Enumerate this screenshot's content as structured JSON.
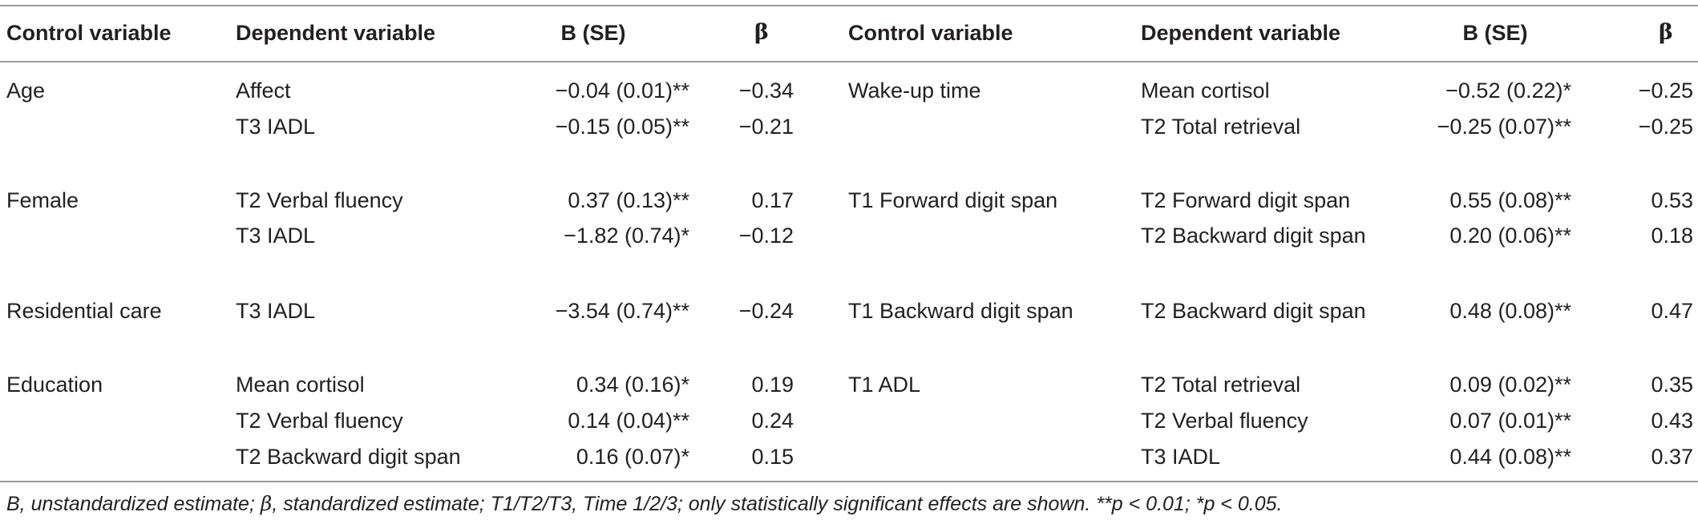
{
  "headers": {
    "control": "Control variable",
    "dependent": "Dependent variable",
    "b_se": "B (SE)",
    "beta": "β"
  },
  "left_rows": [
    {
      "control": "Age",
      "dependent": "Affect",
      "b_se": "−0.04 (0.01)**",
      "beta": "−0.34"
    },
    {
      "control": "",
      "dependent": "T3 IADL",
      "b_se": "−0.15 (0.05)**",
      "beta": "−0.21"
    },
    {
      "control": "Female",
      "dependent": "T2 Verbal fluency",
      "b_se": "0.37 (0.13)**",
      "beta": "0.17"
    },
    {
      "control": "",
      "dependent": "T3 IADL",
      "b_se": "−1.82 (0.74)*",
      "beta": "−0.12"
    },
    {
      "control": "Residential care",
      "dependent": "T3 IADL",
      "b_se": "−3.54 (0.74)**",
      "beta": "−0.24"
    },
    {
      "control": "Education",
      "dependent": "Mean cortisol",
      "b_se": "0.34 (0.16)*",
      "beta": "0.19"
    },
    {
      "control": "",
      "dependent": "T2 Verbal fluency",
      "b_se": "0.14 (0.04)**",
      "beta": "0.24"
    },
    {
      "control": "",
      "dependent": "T2 Backward digit span",
      "b_se": "0.16 (0.07)*",
      "beta": "0.15"
    }
  ],
  "right_rows": [
    {
      "control": "Wake-up time",
      "dependent": "Mean cortisol",
      "b_se": "−0.52 (0.22)*",
      "beta": "−0.25"
    },
    {
      "control": "",
      "dependent": "T2 Total retrieval",
      "b_se": "−0.25 (0.07)**",
      "beta": "−0.25"
    },
    {
      "control": "T1 Forward digit span",
      "dependent": "T2 Forward digit span",
      "b_se": "0.55 (0.08)**",
      "beta": "0.53"
    },
    {
      "control": "",
      "dependent": "T2 Backward digit span",
      "b_se": "0.20 (0.06)**",
      "beta": "0.18"
    },
    {
      "control": "T1 Backward digit span",
      "dependent": "T2 Backward digit span",
      "b_se": "0.48 (0.08)**",
      "beta": "0.47"
    },
    {
      "control": "T1 ADL",
      "dependent": "T2 Total retrieval",
      "b_se": "0.09 (0.02)**",
      "beta": "0.35"
    },
    {
      "control": "",
      "dependent": "T2 Verbal fluency",
      "b_se": "0.07 (0.01)**",
      "beta": "0.43"
    },
    {
      "control": "",
      "dependent": "T3 IADL",
      "b_se": "0.44 (0.08)**",
      "beta": "0.37"
    }
  ],
  "footnote": {
    "part1": "B, unstandardized estimate; ",
    "beta_symbol": "β",
    "part2": ", standardized estimate; T1/T2/T3, Time 1/2/3; only statistically significant effects are shown. **p < 0.01; *p < 0.05."
  }
}
